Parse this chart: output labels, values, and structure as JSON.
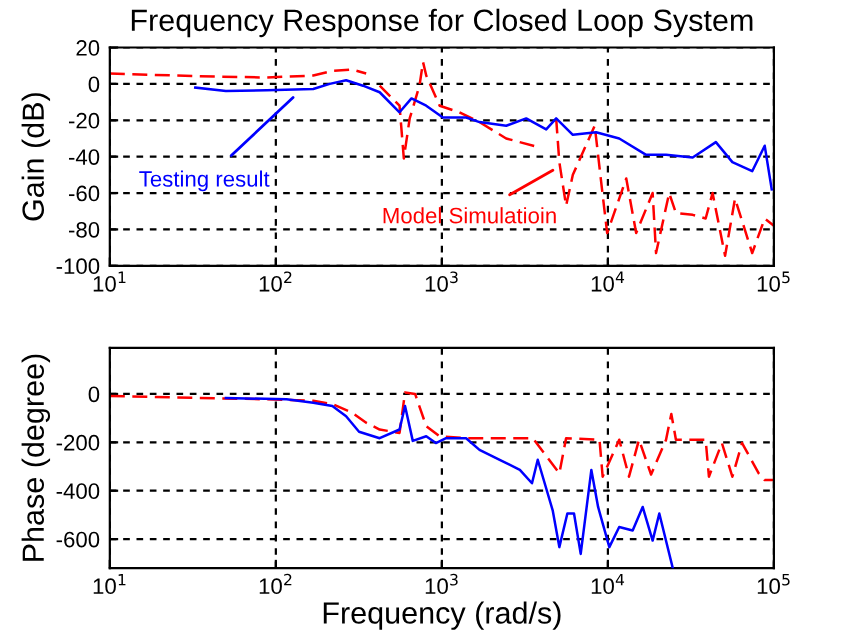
{
  "chart_data": [
    {
      "type": "line",
      "title": "Frequency Response for Closed Loop System",
      "ylabel": "Gain (dB)",
      "log": "x",
      "grid": true,
      "xlim": [
        10,
        100000
      ],
      "xticks": [
        {
          "value": 10,
          "label": "10$^{1}$"
        },
        {
          "value": 100,
          "label": "10$^{2}$"
        },
        {
          "value": 1000,
          "label": "10$^{3}$"
        },
        {
          "value": 10000,
          "label": "10$^{4}$"
        },
        {
          "value": 100000,
          "label": "10$^{5}$"
        }
      ],
      "ylim": [
        -100,
        20
      ],
      "yticks": [
        -100,
        -80,
        -60,
        -40,
        -20,
        0,
        20
      ],
      "annotations": [
        {
          "text": "Testing result",
          "x": 127,
          "y": -7.5
        },
        {
          "text": "Model Simulatioin",
          "x": 4660,
          "y": -47.5
        }
      ],
      "series": [
        {
          "color": "#0000ff",
          "line_style": "solid",
          "x": [
            32.7,
            50,
            88,
            168,
            211,
            265,
            335,
            422,
            556,
            656,
            805,
            1014,
            1400,
            1685,
            2440,
            3220,
            4250,
            4880,
            6150,
            8490,
            11700,
            17000,
            22400,
            32400,
            44700,
            56200,
            74000,
            88000,
            97000
          ],
          "values": [
            -2,
            -3.9,
            -3.5,
            -2.8,
            0,
            2,
            -1,
            -4.6,
            -15.6,
            -8,
            -12,
            -18.5,
            -18.5,
            -21,
            -23,
            -19,
            -25,
            -19,
            -28,
            -26.6,
            -30,
            -39,
            -39,
            -40.5,
            -32,
            -43,
            -48,
            -34,
            -58
          ]
        },
        {
          "color": "#ff0000",
          "line_style": "dashed",
          "x": [
            10,
            34.8,
            88,
            168,
            219,
            289,
            350,
            380,
            422,
            556,
            590,
            640,
            733,
            770,
            805,
            970,
            1270,
            1685,
            2440,
            3780,
            4300,
            4880,
            5100,
            5600,
            6150,
            8330,
            9300,
            9900,
            12900,
            14800,
            18600,
            19500,
            23400,
            25700,
            32400,
            38800,
            42700,
            50800,
            58300,
            74000,
            88000,
            100000
          ],
          "values": [
            5.7,
            4.2,
            3.5,
            4.6,
            7.2,
            7.9,
            5.7,
            null,
            -1,
            -12,
            -41,
            -19,
            -1,
            12,
            4.6,
            -12,
            -15.6,
            -21,
            -30,
            -34.7,
            null,
            -19,
            -43,
            -67,
            -50,
            -23,
            -61,
            -82,
            -52,
            -82,
            -60,
            -93,
            -60,
            -71,
            -72,
            -74,
            -60,
            -94.5,
            -63,
            -93,
            -74,
            -78
          ]
        }
      ]
    },
    {
      "type": "line",
      "xlabel": "Frequency (rad/s)",
      "ylabel": "Phase (degree)",
      "log": "x",
      "grid": true,
      "xlim": [
        10,
        100000
      ],
      "xticks": [
        {
          "value": 10,
          "label": "10$^{1}$"
        },
        {
          "value": 100,
          "label": "10$^{2}$"
        },
        {
          "value": 1000,
          "label": "10$^{3}$"
        },
        {
          "value": 10000,
          "label": "10$^{4}$"
        },
        {
          "value": 100000,
          "label": "10$^{5}$"
        }
      ],
      "ylim": [
        -720,
        190
      ],
      "yticks": [
        -600,
        -400,
        -200,
        0
      ],
      "series": [
        {
          "color": "#0000ff",
          "line_style": "solid",
          "x": [
            50,
            116,
            168,
            219,
            265,
            317,
            422,
            556,
            600,
            668,
            805,
            920,
            1060,
            1400,
            1685,
            2230,
            2950,
            3490,
            3780,
            4650,
            5100,
            5700,
            6250,
            6860,
            7950,
            8730,
            10200,
            11700,
            14100,
            16200,
            18600,
            20400,
            24600
          ],
          "values": [
            -17,
            -22,
            -36,
            -50,
            -92,
            -156,
            -183,
            -147,
            -50,
            -194,
            -175,
            -203,
            -183,
            -183,
            -231,
            -272,
            -314,
            -369,
            -272,
            -481,
            -633,
            -494,
            -494,
            -661,
            -314,
            -467,
            -633,
            -550,
            -564,
            -467,
            -606,
            -494,
            -720
          ]
        },
        {
          "color": "#ff0000",
          "line_style": "dashed",
          "x": [
            10,
            35,
            88,
            168,
            219,
            289,
            350,
            422,
            556,
            600,
            690,
            805,
            970,
            1400,
            2230,
            3530,
            5100,
            5600,
            8900,
            9300,
            11700,
            13400,
            15400,
            18200,
            22400,
            24100,
            25700,
            38800,
            40600,
            48600,
            56200,
            64300,
            81000,
            88000,
            100000
          ],
          "values": [
            -8,
            -17,
            -22,
            -28,
            -42,
            -78,
            -119,
            -147,
            -161,
            6,
            0,
            -133,
            -175,
            -183,
            -183,
            -183,
            -328,
            -183,
            -189,
            -342,
            -189,
            -342,
            -189,
            -333,
            -189,
            -83,
            -189,
            -189,
            -342,
            -203,
            -342,
            -203,
            -328,
            -356,
            -356
          ]
        }
      ]
    }
  ]
}
